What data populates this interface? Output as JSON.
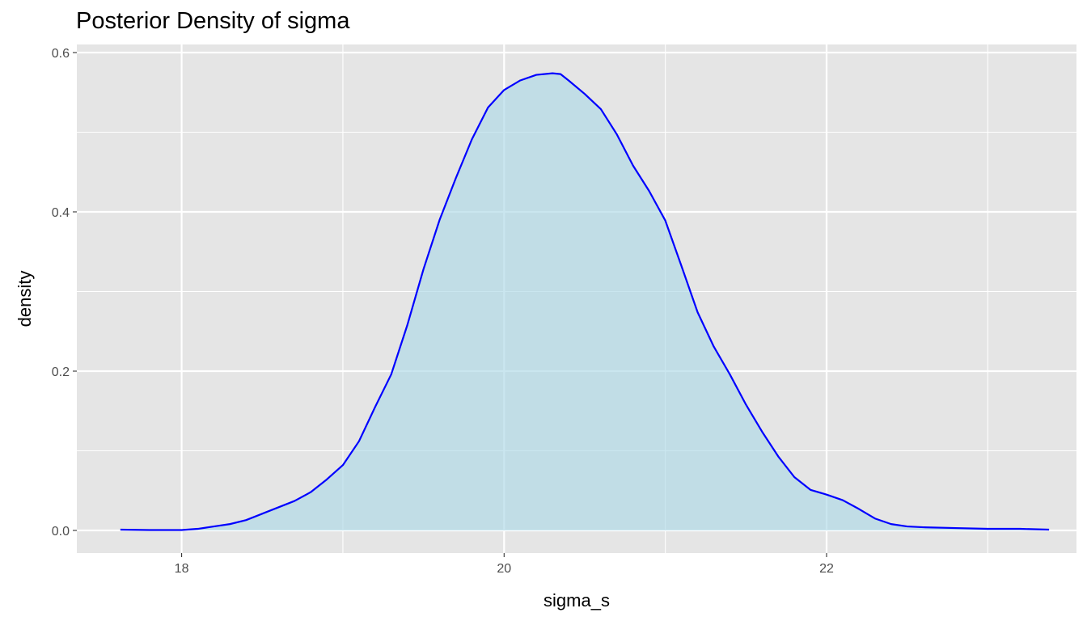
{
  "chart_data": {
    "type": "area",
    "title": "Posterior Density of sigma",
    "xlabel": "sigma_s",
    "ylabel": "density",
    "xlim": [
      17.35,
      23.55
    ],
    "ylim": [
      -0.0283,
      0.6
    ],
    "x_ticks": [
      18,
      20,
      22
    ],
    "x_tick_labels": [
      "18",
      "20",
      "22"
    ],
    "x_minor_ticks": [
      19,
      21,
      23
    ],
    "y_ticks": [
      0.0,
      0.2,
      0.4,
      0.6
    ],
    "y_tick_labels": [
      "0.0",
      "0.2",
      "0.4",
      "0.6"
    ],
    "y_minor_ticks": [
      0.1,
      0.3,
      0.5
    ],
    "grid": true,
    "legend": "none",
    "colors": {
      "line": "#0000ff",
      "fill": "#add8e6",
      "panel": "#e5e5e5",
      "grid": "#ffffff"
    },
    "series": [
      {
        "x": [
          17.62,
          17.8,
          18.0,
          18.1,
          18.2,
          18.3,
          18.4,
          18.5,
          18.6,
          18.7,
          18.8,
          18.9,
          19.0,
          19.1,
          19.2,
          19.3,
          19.4,
          19.5,
          19.6,
          19.7,
          19.8,
          19.9,
          20.0,
          20.1,
          20.2,
          20.3,
          20.35,
          20.4,
          20.5,
          20.6,
          20.7,
          20.8,
          20.9,
          21.0,
          21.1,
          21.2,
          21.3,
          21.4,
          21.5,
          21.6,
          21.7,
          21.8,
          21.9,
          22.0,
          22.1,
          22.2,
          22.3,
          22.4,
          22.5,
          22.6,
          22.8,
          23.0,
          23.2,
          23.38
        ],
        "y": [
          0.001,
          0.0005,
          0.0005,
          0.002,
          0.005,
          0.008,
          0.013,
          0.021,
          0.029,
          0.037,
          0.048,
          0.064,
          0.082,
          0.112,
          0.155,
          0.196,
          0.258,
          0.328,
          0.39,
          0.442,
          0.491,
          0.531,
          0.553,
          0.565,
          0.572,
          0.574,
          0.573,
          0.565,
          0.548,
          0.529,
          0.497,
          0.458,
          0.426,
          0.389,
          0.332,
          0.274,
          0.231,
          0.196,
          0.158,
          0.124,
          0.093,
          0.067,
          0.051,
          0.045,
          0.038,
          0.027,
          0.015,
          0.008,
          0.005,
          0.004,
          0.003,
          0.002,
          0.002,
          0.001
        ]
      }
    ]
  }
}
